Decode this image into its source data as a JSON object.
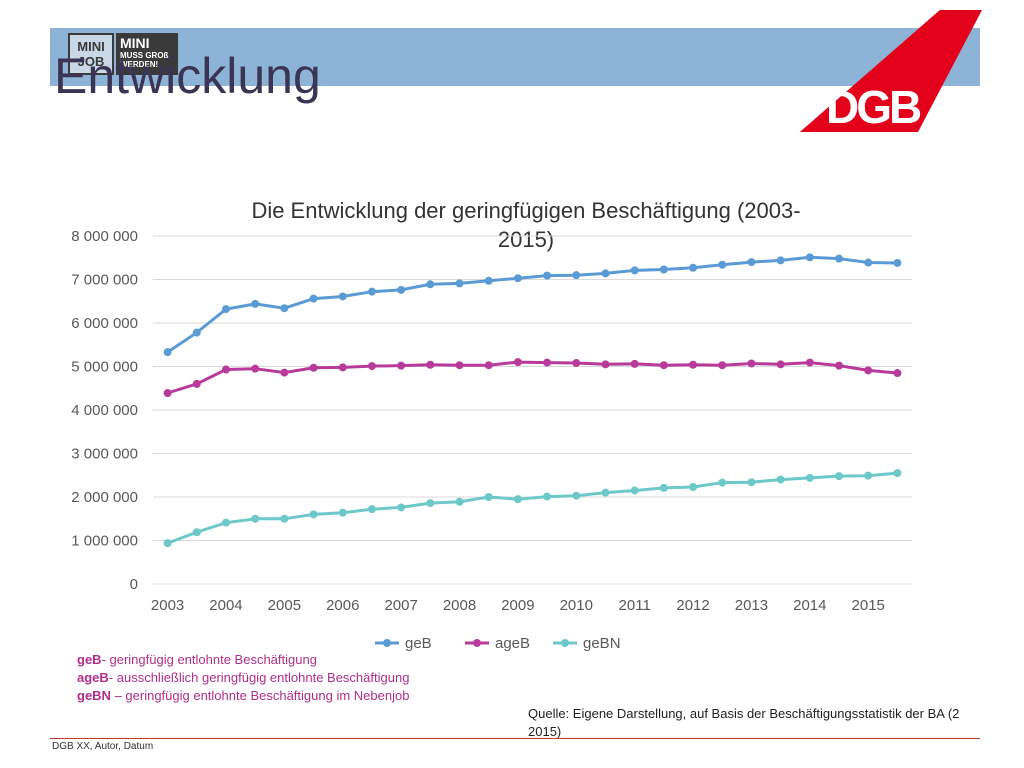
{
  "header": {
    "title": "Entwicklung",
    "logo_mini_left": "MINI JOB",
    "logo_mini_right_line1": "MINI",
    "logo_mini_right_line2": "MUSS GROß WERDEN!",
    "brand": "DGB",
    "brand_color": "#e2001a",
    "band_color": "#8db4d6"
  },
  "chart_data": {
    "type": "line",
    "title": "Die Entwicklung der geringfügigen Beschäftigung (2003-",
    "title_line2": "2015)",
    "xlabel": "",
    "ylabel": "",
    "ylim": [
      0,
      8000000
    ],
    "yticks": [
      "0",
      "1 000 000",
      "2 000 000",
      "3 000 000",
      "4 000 000",
      "5 000 000",
      "6 000 000",
      "7 000 000",
      "8 000 000"
    ],
    "xtick_labels": [
      "2003",
      "2004",
      "2005",
      "2006",
      "2007",
      "2008",
      "2009",
      "2010",
      "2011",
      "2012",
      "2013",
      "2014",
      "2015"
    ],
    "grid": true,
    "legend_position": "bottom",
    "x": [
      "2003 H1",
      "2003 H2",
      "2004 H1",
      "2004 H2",
      "2005 H1",
      "2005 H2",
      "2006 H1",
      "2006 H2",
      "2007 H1",
      "2007 H2",
      "2008 H1",
      "2008 H2",
      "2009 H1",
      "2009 H2",
      "2010 H1",
      "2010 H2",
      "2011 H1",
      "2011 H2",
      "2012 H1",
      "2012 H2",
      "2013 H1",
      "2013 H2",
      "2014 H1",
      "2014 H2",
      "2015 H1",
      "2015 H2"
    ],
    "series": [
      {
        "name": "geB",
        "color": "#5b9bd5",
        "values": [
          5330000,
          5780000,
          6320000,
          6440000,
          6340000,
          6560000,
          6610000,
          6720000,
          6760000,
          6890000,
          6910000,
          6970000,
          7030000,
          7090000,
          7100000,
          7140000,
          7210000,
          7230000,
          7270000,
          7340000,
          7400000,
          7440000,
          7510000,
          7480000,
          7390000,
          7380000
        ]
      },
      {
        "name": "ageB",
        "color": "#b83b9b",
        "values": [
          4390000,
          4600000,
          4930000,
          4950000,
          4860000,
          4970000,
          4980000,
          5010000,
          5020000,
          5040000,
          5030000,
          5030000,
          5100000,
          5090000,
          5080000,
          5050000,
          5060000,
          5030000,
          5040000,
          5030000,
          5070000,
          5050000,
          5090000,
          5020000,
          4910000,
          4850000
        ]
      },
      {
        "name": "geBN",
        "color": "#6dc8c9",
        "values": [
          940000,
          1190000,
          1410000,
          1500000,
          1500000,
          1600000,
          1640000,
          1720000,
          1760000,
          1860000,
          1890000,
          2000000,
          1950000,
          2010000,
          2030000,
          2100000,
          2150000,
          2210000,
          2230000,
          2330000,
          2340000,
          2400000,
          2440000,
          2480000,
          2490000,
          2550000
        ]
      }
    ]
  },
  "footnotes": [
    {
      "abbr": "geB",
      "text": "- geringfügig entlohnte Beschäftigung"
    },
    {
      "abbr": "ageB",
      "text": "- ausschließlich geringfügig entlohnte Beschäftigung"
    },
    {
      "abbr": "geBN",
      "text": " – geringfügig entlohnte Beschäftigung im Nebenjob"
    }
  ],
  "source_line1": "Quelle: Eigene Darstellung, auf Basis der Beschäftigungsstatistik der BA (2",
  "source_line2": "2015)",
  "footer": "DGB XX, Autor, Datum"
}
